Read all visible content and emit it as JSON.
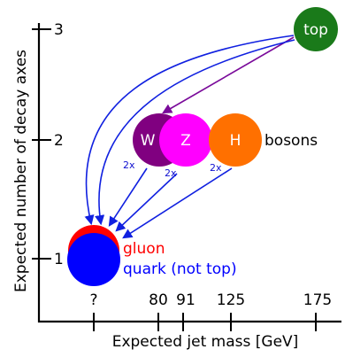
{
  "axes": {
    "x_label": "Expected jet mass [GeV]",
    "y_label": "Expected number of decay axes",
    "x_ticks": [
      "?",
      "80",
      "91",
      "125",
      "175"
    ],
    "y_ticks": [
      "1",
      "2",
      "3"
    ]
  },
  "particles": {
    "top": {
      "label": "top",
      "color": "#1a7a1a"
    },
    "w": {
      "label": "W",
      "color": "#800080"
    },
    "z": {
      "label": "Z",
      "color": "#ff00ff"
    },
    "h": {
      "label": "H",
      "color": "#ff7000"
    },
    "bosons_label": "bosons",
    "gluon": {
      "label": "gluon",
      "color": "#ff0000"
    },
    "quark": {
      "label": "quark (not top)",
      "color": "#0000ff"
    }
  },
  "multiplicity": {
    "w": "2x",
    "z": "2x",
    "h": "2x"
  },
  "colors": {
    "blue_arrow": "#1020e0",
    "purple_arrow": "#7a0a9a",
    "axis": "#000000"
  }
}
